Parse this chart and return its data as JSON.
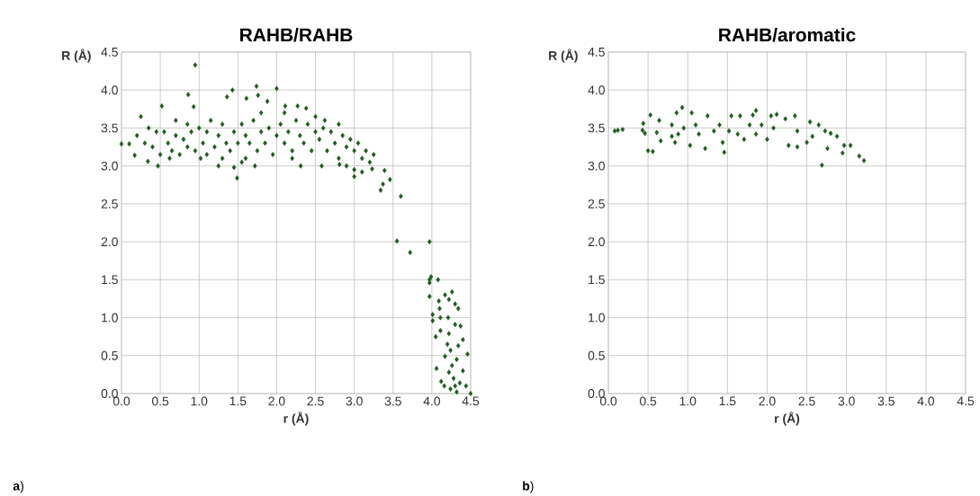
{
  "chart_data": [
    {
      "type": "scatter",
      "title": "RAHB/RAHB",
      "xlabel": "r (Å)",
      "ylabel": "R (Å)",
      "annotations": [
        "**a**)"
      ],
      "color": "#215a1f",
      "marker": "diamond",
      "grid": true,
      "xlim": [
        0,
        4.5
      ],
      "ylim": [
        0,
        4.5
      ],
      "xticks": [
        {
          "value": 0,
          "label": "0.0"
        },
        0.5,
        {
          "value": 1,
          "label": "1.0"
        },
        1.5,
        {
          "value": 2,
          "label": "2.0"
        },
        2.5,
        {
          "value": 3,
          "label": "3.0"
        },
        3.5,
        {
          "value": 4,
          "label": "4.0"
        },
        4.5
      ],
      "yticks": [
        {
          "value": 0,
          "label": "0.0"
        },
        0.5,
        {
          "value": 1,
          "label": "1.0"
        },
        1.5,
        {
          "value": 2,
          "label": "2.0"
        },
        2.5,
        {
          "value": 3,
          "label": "3.0"
        },
        3.5,
        {
          "value": 4,
          "label": "4.0"
        },
        4.5
      ],
      "x": [
        0.95,
        1.43,
        1.36,
        1.74,
        2.0,
        0.86,
        0.52,
        0.93,
        0.25,
        0,
        0.1,
        0.17,
        0.34,
        0.47,
        1.49,
        1.45,
        1.61,
        1.76,
        1.88,
        2.11,
        2.27,
        2.38,
        2.31,
        2.58,
        2.81,
        3.0,
        3.1,
        3.23,
        3.39,
        3.34,
        3.37,
        3.46,
        3.6,
        3.55,
        3.97,
        3.72,
        3.97,
        3.99,
        4.08,
        3.97,
        3.97,
        4.26,
        4.17,
        4.09,
        4.3,
        4.22,
        4.1,
        4.01,
        4.01,
        4.11,
        4.21,
        4.34,
        4.3,
        4.37,
        4.11,
        4.05,
        4.22,
        4.2,
        4.4,
        4.34,
        4.24,
        4.46,
        4.17,
        4.32,
        4.06,
        4.26,
        4.4,
        4.22,
        4.12,
        4.28,
        4.36,
        4.16,
        4.24,
        4.32,
        4.44,
        4.5,
        4.3,
        0.55,
        0.6,
        0.65,
        0.7,
        0.75,
        0.8,
        0.85,
        0.9,
        0.95,
        1.0,
        0.7,
        0.62,
        0.85,
        1.05,
        1.1,
        1.1,
        1.15,
        1.2,
        1.25,
        1.3,
        1.3,
        1.35,
        1.4,
        1.45,
        1.5,
        1.02,
        1.25,
        1.55,
        1.6,
        1.6,
        1.65,
        1.7,
        1.72,
        1.75,
        1.8,
        1.85,
        1.9,
        1.95,
        2.0,
        1.55,
        1.8,
        2.05,
        2.1,
        2.1,
        2.15,
        2.2,
        2.25,
        2.3,
        2.35,
        2.4,
        2.45,
        2.5,
        2.2,
        2.5,
        2.55,
        2.6,
        2.65,
        2.7,
        2.75,
        2.8,
        2.8,
        2.85,
        2.9,
        2.95,
        3.0,
        2.9,
        2.62,
        3.05,
        3.1,
        3.15,
        3.2,
        3.25,
        3.0,
        0.2,
        0.3,
        0.4,
        0.45,
        0.35,
        0.5
      ],
      "values": [
        4.33,
        4.0,
        3.91,
        4.05,
        4.02,
        3.94,
        3.79,
        3.78,
        3.65,
        3.29,
        3.29,
        3.14,
        3.06,
        3.0,
        2.84,
        2.98,
        3.89,
        3.93,
        3.85,
        3.79,
        3.79,
        3.76,
        3.0,
        3.0,
        3.02,
        2.86,
        2.92,
        2.96,
        2.94,
        2.68,
        2.76,
        2.82,
        2.6,
        2.01,
        2.0,
        1.86,
        1.5,
        1.54,
        1.5,
        1.46,
        1.28,
        1.34,
        1.3,
        1.22,
        1.18,
        1.24,
        1.12,
        1.04,
        0.96,
        1.0,
        1.0,
        1.12,
        0.91,
        0.89,
        0.83,
        0.75,
        0.79,
        0.65,
        0.71,
        0.63,
        0.57,
        0.52,
        0.49,
        0.45,
        0.33,
        0.37,
        0.3,
        0.28,
        0.16,
        0.2,
        0.14,
        0.1,
        0.06,
        0.02,
        0.1,
        0.0,
        0.1,
        3.45,
        3.3,
        3.2,
        3.4,
        3.15,
        3.35,
        3.25,
        3.45,
        3.2,
        3.5,
        3.6,
        3.1,
        3.55,
        3.3,
        3.15,
        3.45,
        3.6,
        3.25,
        3.4,
        3.1,
        3.55,
        3.3,
        3.2,
        3.45,
        3.3,
        3.1,
        3.0,
        3.55,
        3.4,
        3.1,
        3.3,
        3.6,
        3.0,
        3.2,
        3.45,
        3.3,
        3.5,
        3.15,
        3.4,
        3.05,
        3.7,
        3.55,
        3.3,
        3.7,
        3.45,
        3.2,
        3.6,
        3.4,
        3.3,
        3.55,
        3.2,
        3.45,
        3.1,
        3.65,
        3.35,
        3.5,
        3.2,
        3.45,
        3.3,
        3.55,
        3.1,
        3.4,
        3.25,
        3.35,
        3.2,
        3.0,
        3.6,
        3.3,
        3.1,
        3.2,
        3.05,
        3.15,
        2.95,
        3.4,
        3.3,
        3.25,
        3.45,
        3.5,
        3.15
      ]
    },
    {
      "type": "scatter",
      "title": "RAHB/aromatic",
      "xlabel": "r (Å)",
      "ylabel": "R (Å)",
      "annotations": [
        "**b**)"
      ],
      "color": "#215a1f",
      "marker": "diamond",
      "grid": true,
      "xlim": [
        0,
        4.5
      ],
      "ylim": [
        0,
        4.5
      ],
      "xticks": [
        {
          "value": 0,
          "label": "0.0"
        },
        0.5,
        {
          "value": 1,
          "label": "1.0"
        },
        1.5,
        {
          "value": 2,
          "label": "2.0"
        },
        2.5,
        {
          "value": 3,
          "label": "3.0"
        },
        3.5,
        {
          "value": 4,
          "label": "4.0"
        },
        4.5
      ],
      "yticks": [
        {
          "value": 0,
          "label": "0.0"
        },
        0.5,
        {
          "value": 1,
          "label": "1.0"
        },
        1.5,
        {
          "value": 2,
          "label": "2.0"
        },
        2.5,
        {
          "value": 3,
          "label": "3.0"
        },
        3.5,
        {
          "value": 4,
          "label": "4.0"
        },
        4.5
      ],
      "x": [
        0.08,
        0.12,
        0.18,
        0.43,
        0.44,
        0.46,
        0.5,
        0.56,
        0.53,
        0.64,
        0.61,
        0.66,
        0.93,
        0.86,
        1.05,
        0.8,
        0.88,
        0.84,
        1.03,
        0.95,
        1.1,
        1.22,
        1.25,
        1.33,
        1.44,
        1.46,
        1.55,
        1.63,
        1.66,
        1.78,
        1.82,
        1.86,
        1.86,
        2.0,
        2.05,
        2.12,
        2.08,
        2.23,
        2.27,
        2.35,
        2.38,
        2.38,
        2.54,
        2.57,
        2.69,
        2.65,
        2.76,
        2.8,
        2.88,
        2.95,
        2.97,
        3.05,
        3.16,
        3.22,
        1.14,
        1.4,
        1.93,
        2.5,
        1.71,
        1.52,
        0.8,
        2.73
      ],
      "values": [
        3.46,
        3.47,
        3.48,
        3.47,
        3.56,
        3.43,
        3.2,
        3.19,
        3.67,
        3.6,
        3.44,
        3.33,
        3.77,
        3.7,
        3.7,
        3.54,
        3.42,
        3.31,
        3.27,
        3.5,
        3.54,
        3.23,
        3.66,
        3.46,
        3.31,
        3.18,
        3.66,
        3.42,
        3.66,
        3.54,
        3.67,
        3.73,
        3.42,
        3.35,
        3.66,
        3.68,
        3.5,
        3.62,
        3.27,
        3.66,
        3.46,
        3.25,
        3.58,
        3.39,
        3.01,
        3.54,
        3.23,
        3.43,
        3.39,
        3.17,
        3.27,
        3.27,
        3.13,
        3.07,
        3.42,
        3.54,
        3.54,
        3.31,
        3.35,
        3.46,
        3.39,
        3.46
      ]
    }
  ]
}
